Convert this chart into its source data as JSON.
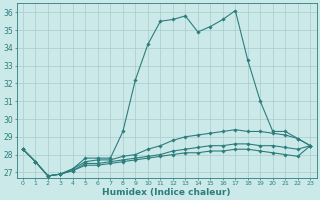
{
  "title": "",
  "xlabel": "Humidex (Indice chaleur)",
  "xlim": [
    -0.5,
    23.5
  ],
  "ylim": [
    26.7,
    36.5
  ],
  "yticks": [
    27,
    28,
    29,
    30,
    31,
    32,
    33,
    34,
    35,
    36
  ],
  "xticks": [
    0,
    1,
    2,
    3,
    4,
    5,
    6,
    7,
    8,
    9,
    10,
    11,
    12,
    13,
    14,
    15,
    16,
    17,
    18,
    19,
    20,
    21,
    22,
    23
  ],
  "bg_color": "#cce9e9",
  "line_color": "#2d7d7d",
  "grid_color": "#aacccc",
  "lines": [
    [
      28.3,
      27.6,
      26.8,
      26.9,
      27.2,
      27.8,
      27.8,
      27.8,
      29.3,
      32.2,
      34.2,
      35.5,
      35.6,
      35.8,
      34.9,
      35.2,
      35.6,
      36.1,
      33.3,
      31.0,
      29.3,
      29.3,
      28.9,
      28.5
    ],
    [
      28.3,
      27.6,
      26.8,
      26.9,
      27.2,
      27.6,
      27.7,
      27.7,
      27.9,
      28.0,
      28.3,
      28.5,
      28.8,
      29.0,
      29.1,
      29.2,
      29.3,
      29.4,
      29.3,
      29.3,
      29.2,
      29.1,
      28.9,
      28.5
    ],
    [
      28.3,
      27.6,
      26.8,
      26.9,
      27.1,
      27.5,
      27.5,
      27.6,
      27.7,
      27.8,
      27.9,
      28.0,
      28.2,
      28.3,
      28.4,
      28.5,
      28.5,
      28.6,
      28.6,
      28.5,
      28.5,
      28.4,
      28.3,
      28.5
    ],
    [
      28.3,
      27.6,
      26.8,
      26.9,
      27.1,
      27.4,
      27.4,
      27.5,
      27.6,
      27.7,
      27.8,
      27.9,
      28.0,
      28.1,
      28.1,
      28.2,
      28.2,
      28.3,
      28.3,
      28.2,
      28.1,
      28.0,
      27.9,
      28.5
    ]
  ]
}
